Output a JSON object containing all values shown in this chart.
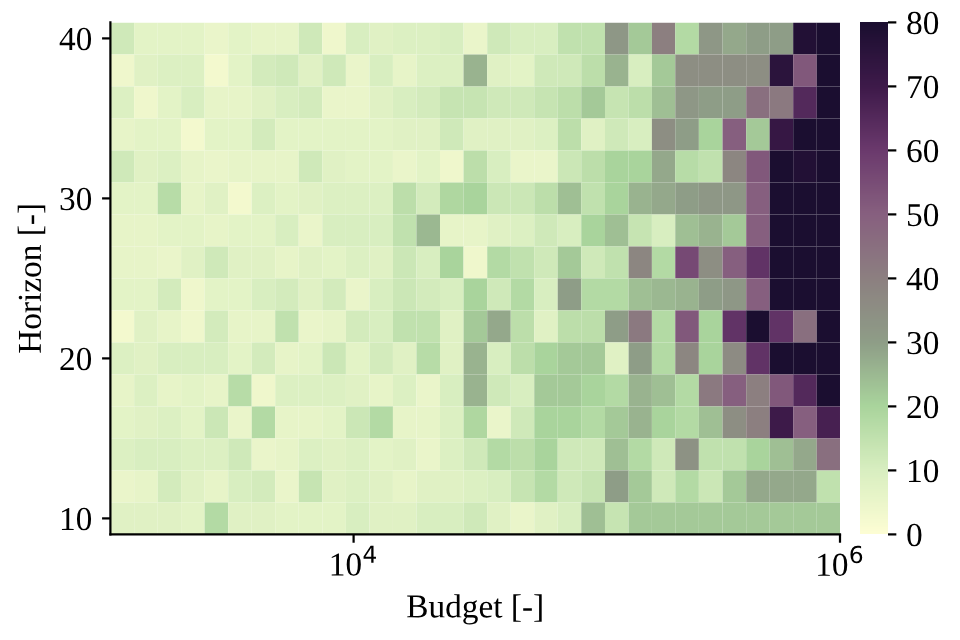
{
  "chart_data": {
    "type": "heatmap",
    "xlabel": "Budget [-]",
    "ylabel": "Horizon [-]",
    "x": [
      1120,
      1400,
      1750,
      2180,
      2730,
      3410,
      4260,
      5320,
      6650,
      8310,
      10400,
      13000,
      16200,
      20300,
      25300,
      31700,
      39600,
      49500,
      61800,
      77200,
      96500,
      121000,
      151000,
      188000,
      235000,
      294000,
      368000,
      460000,
      574000,
      718000,
      897000
    ],
    "y": [
      40,
      38,
      36,
      34,
      32,
      30,
      28,
      26,
      24,
      22,
      20,
      18,
      16,
      14,
      12,
      10
    ],
    "log": "x",
    "xlim": [
      1000,
      1000000
    ],
    "xticks": [
      {
        "value": 10000,
        "label": "10$^{4}$"
      },
      {
        "value": 1000000,
        "label": "10$^{6}$"
      }
    ],
    "ylim": [
      9,
      41
    ],
    "yticks": [
      10,
      20,
      30,
      40
    ],
    "clim": [
      0,
      80
    ],
    "cticks": [
      0,
      10,
      20,
      30,
      40,
      50,
      60,
      70,
      80
    ],
    "grid": false,
    "cells": [
      [
        12,
        7,
        7,
        7,
        5,
        7,
        6,
        6,
        12,
        4,
        10,
        8,
        9,
        9,
        10,
        5,
        12,
        10,
        10,
        15,
        15,
        32,
        22,
        40,
        18,
        32,
        28,
        30,
        30,
        78,
        80
      ],
      [
        4,
        8,
        9,
        9,
        3,
        7,
        11,
        12,
        8,
        12,
        5,
        10,
        6,
        9,
        9,
        26,
        8,
        7,
        12,
        12,
        16,
        26,
        10,
        22,
        35,
        35,
        35,
        35,
        75,
        52,
        80
      ],
      [
        9,
        4,
        7,
        10,
        6,
        6,
        8,
        10,
        11,
        5,
        5,
        8,
        10,
        11,
        14,
        14,
        12,
        12,
        14,
        16,
        22,
        14,
        16,
        24,
        32,
        30,
        30,
        45,
        42,
        65,
        80
      ],
      [
        6,
        7,
        7,
        3,
        7,
        7,
        11,
        7,
        7,
        7,
        7,
        7,
        8,
        8,
        12,
        8,
        8,
        8,
        9,
        16,
        8,
        12,
        10,
        35,
        30,
        20,
        50,
        22,
        72,
        80,
        80
      ],
      [
        12,
        8,
        9,
        6,
        5,
        6,
        6,
        6,
        12,
        8,
        7,
        7,
        5,
        7,
        4,
        16,
        10,
        5,
        5,
        13,
        16,
        20,
        20,
        28,
        17,
        15,
        38,
        52,
        80,
        78,
        80
      ],
      [
        7,
        7,
        17,
        6,
        8,
        3,
        9,
        7,
        8,
        9,
        9,
        9,
        16,
        11,
        19,
        20,
        13,
        13,
        16,
        24,
        15,
        20,
        26,
        28,
        30,
        32,
        32,
        50,
        80,
        80,
        80
      ],
      [
        6,
        6,
        7,
        7,
        6,
        7,
        7,
        10,
        5,
        10,
        10,
        10,
        15,
        25,
        6,
        6,
        8,
        9,
        12,
        10,
        20,
        24,
        14,
        10,
        24,
        26,
        22,
        50,
        80,
        80,
        80
      ],
      [
        6,
        6,
        5,
        8,
        12,
        8,
        8,
        6,
        8,
        7,
        9,
        8,
        13,
        10,
        20,
        4,
        18,
        15,
        12,
        22,
        12,
        15,
        38,
        18,
        56,
        35,
        50,
        62,
        80,
        80,
        80
      ],
      [
        7,
        7,
        11,
        4,
        7,
        7,
        10,
        11,
        8,
        11,
        5,
        10,
        13,
        11,
        10,
        20,
        12,
        18,
        10,
        30,
        18,
        18,
        24,
        25,
        26,
        30,
        32,
        50,
        80,
        80,
        80
      ],
      [
        3,
        8,
        6,
        4,
        11,
        6,
        6,
        15,
        5,
        6,
        11,
        10,
        15,
        15,
        8,
        22,
        28,
        16,
        8,
        16,
        16,
        30,
        42,
        18,
        52,
        20,
        62,
        80,
        62,
        45,
        80
      ],
      [
        9,
        8,
        10,
        10,
        10,
        7,
        11,
        6,
        7,
        13,
        7,
        11,
        8,
        17,
        8,
        26,
        10,
        16,
        20,
        22,
        22,
        8,
        30,
        18,
        38,
        20,
        36,
        62,
        80,
        80,
        80
      ],
      [
        6,
        9,
        6,
        7,
        6,
        17,
        4,
        9,
        9,
        9,
        8,
        6,
        9,
        5,
        10,
        26,
        12,
        10,
        22,
        22,
        20,
        18,
        26,
        24,
        18,
        42,
        50,
        40,
        52,
        65,
        80
      ],
      [
        7,
        8,
        9,
        7,
        13,
        5,
        18,
        6,
        6,
        7,
        13,
        18,
        6,
        6,
        9,
        19,
        5,
        12,
        20,
        20,
        18,
        22,
        26,
        20,
        18,
        24,
        35,
        40,
        70,
        50,
        68
      ],
      [
        9,
        10,
        10,
        9,
        9,
        12,
        5,
        6,
        9,
        8,
        9,
        7,
        8,
        5,
        9,
        12,
        18,
        16,
        20,
        12,
        12,
        24,
        18,
        12,
        34,
        15,
        15,
        20,
        24,
        28,
        45
      ],
      [
        5,
        6,
        11,
        8,
        6,
        10,
        11,
        5,
        14,
        8,
        9,
        8,
        6,
        8,
        8,
        9,
        10,
        14,
        18,
        12,
        14,
        30,
        22,
        12,
        18,
        13,
        22,
        28,
        28,
        28,
        15
      ],
      [
        8,
        8,
        8,
        7,
        18,
        8,
        8,
        7,
        7,
        7,
        10,
        8,
        8,
        10,
        10,
        12,
        8,
        5,
        8,
        10,
        24,
        14,
        22,
        22,
        22,
        22,
        22,
        22,
        22,
        22,
        22
      ]
    ]
  }
}
